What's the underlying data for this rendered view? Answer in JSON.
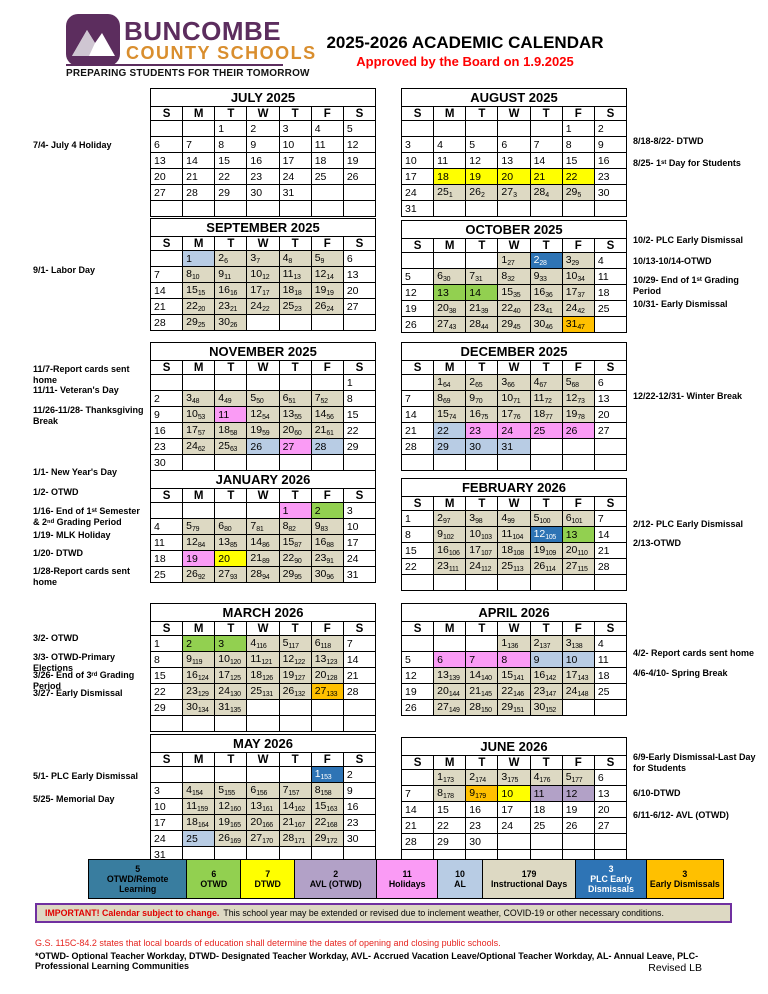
{
  "header": {
    "school_name_line1": "BUNCOMBE",
    "school_name_line2": "COUNTY SCHOOLS",
    "tagline": "PREPARING STUDENTS FOR THEIR TOMORROW",
    "title": "2025-2026 ACADEMIC CALENDAR",
    "approved": "Approved by the Board on 1.9.2025"
  },
  "colors": {
    "otwd_remote": "#397d9f",
    "otwd": "#92d050",
    "dtwd": "#ffff00",
    "avl": "#b2a1c7",
    "holiday": "#fa9bf5",
    "al": "#b8cce4",
    "instructional": "#ddd9c3",
    "plc": "#2e74b5",
    "early_dismissal": "#ffc000",
    "logo_purple": "#5c2d5e",
    "logo_orange": "#d98e2e",
    "approved_red": "#ff0000",
    "banner_border": "#7030a0"
  },
  "day_headers": [
    "S",
    "M",
    "T",
    "W",
    "T",
    "F",
    "S"
  ],
  "months": [
    {
      "name": "JULY 2025",
      "weeks": [
        [
          "",
          "",
          "1",
          "2",
          "3",
          "4",
          "5"
        ],
        [
          "6",
          "7",
          "8",
          "9",
          "10",
          "11",
          "12"
        ],
        [
          "13",
          "14",
          "15",
          "16",
          "17",
          "18",
          "19"
        ],
        [
          "20",
          "21",
          "22",
          "23",
          "24",
          "25",
          "26"
        ],
        [
          "27",
          "28",
          "29",
          "30",
          "31",
          "",
          ""
        ],
        [
          "",
          "",
          "",
          "",
          "",
          "",
          ""
        ]
      ]
    },
    {
      "name": "AUGUST 2025",
      "weeks": [
        [
          "",
          "",
          "",
          "",
          "",
          "1",
          "2"
        ],
        [
          "3",
          "4",
          "5",
          "6",
          "7",
          "8",
          "9"
        ],
        [
          "10",
          "11",
          "12",
          "13",
          "14",
          "15",
          "16"
        ],
        [
          "17",
          "18!dtwd",
          "19!dtwd",
          "20!dtwd",
          "21!dtwd",
          "22!dtwd",
          "23"
        ],
        [
          "24",
          "25.1",
          "26.2",
          "27.3",
          "28.4",
          "29.5",
          "30"
        ],
        [
          "31",
          "",
          "",
          "",
          "",
          "",
          ""
        ]
      ]
    },
    {
      "name": "SEPTEMBER 2025",
      "weeks": [
        [
          "",
          "1!al",
          "2.6",
          "3.7",
          "4.8",
          "5.9",
          "6"
        ],
        [
          "7",
          "8.10",
          "9.11",
          "10.12",
          "11.13",
          "12.14",
          "13"
        ],
        [
          "14",
          "15.15",
          "16.16",
          "17.17",
          "18.18",
          "19.19",
          "20"
        ],
        [
          "21",
          "22.20",
          "23.21",
          "24.22",
          "25.23",
          "26.24",
          "27"
        ],
        [
          "28",
          "29.25",
          "30.26",
          "",
          "",
          "",
          ""
        ]
      ]
    },
    {
      "name": "OCTOBER 2025",
      "weeks": [
        [
          "",
          "",
          "",
          "1.27",
          "2.28!plc",
          "3.29",
          "4"
        ],
        [
          "5",
          "6.30",
          "7.31",
          "8.32",
          "9.33",
          "10.34",
          "11"
        ],
        [
          "12",
          "13!otwd",
          "14!otwd",
          "15.35",
          "16.36",
          "17.37",
          "18"
        ],
        [
          "19",
          "20.38",
          "21.39",
          "22.40",
          "23.41",
          "24.42",
          "25"
        ],
        [
          "26",
          "27.43",
          "28.44",
          "29.45",
          "30.46",
          "31.47!ed",
          ""
        ]
      ]
    },
    {
      "name": "NOVEMBER 2025",
      "weeks": [
        [
          "",
          "",
          "",
          "",
          "",
          "",
          "1"
        ],
        [
          "2",
          "3.48",
          "4.49",
          "5.50",
          "6.51",
          "7.52",
          "8"
        ],
        [
          "9",
          "10.53",
          "11!hol",
          "12.54",
          "13.55",
          "14.56",
          "15"
        ],
        [
          "16",
          "17.57",
          "18.58",
          "19.59",
          "20.60",
          "21.61",
          "22"
        ],
        [
          "23",
          "24.62",
          "25.63",
          "26!al",
          "27!hol",
          "28!al",
          "29"
        ],
        [
          "30",
          "",
          "",
          "",
          "",
          "",
          ""
        ]
      ]
    },
    {
      "name": "DECEMBER 2025",
      "weeks": [
        [
          "",
          "1.64",
          "2.65",
          "3.66",
          "4.67",
          "5.68",
          "6"
        ],
        [
          "7",
          "8.69",
          "9.70",
          "10.71",
          "11.72",
          "12.73",
          "13"
        ],
        [
          "14",
          "15.74",
          "16.75",
          "17.76",
          "18.77",
          "19.78",
          "20"
        ],
        [
          "21",
          "22!al",
          "23!hol",
          "24!hol",
          "25!hol",
          "26!hol",
          "27"
        ],
        [
          "28",
          "29!al",
          "30!al",
          "31!al",
          "",
          "",
          ""
        ],
        [
          "",
          "",
          "",
          "",
          "",
          "",
          ""
        ]
      ]
    },
    {
      "name": "JANUARY 2026",
      "weeks": [
        [
          "",
          "",
          "",
          "",
          "1!hol",
          "2!otwd",
          "3"
        ],
        [
          "4",
          "5.79",
          "6.80",
          "7.81",
          "8.82",
          "9.83",
          "10"
        ],
        [
          "11",
          "12.84",
          "13.85",
          "14.86",
          "15.87",
          "16.88",
          "17"
        ],
        [
          "18",
          "19!hol",
          "20!dtwd",
          "21.89",
          "22.90",
          "23.91",
          "24"
        ],
        [
          "25",
          "26.92",
          "27.93",
          "28.94",
          "29.95",
          "30.96",
          "31"
        ]
      ]
    },
    {
      "name": "FEBRUARY 2026",
      "weeks": [
        [
          "1",
          "2.97",
          "3.98",
          "4.99",
          "5.100",
          "6.101",
          "7"
        ],
        [
          "8",
          "9.102",
          "10.103",
          "11.104",
          "12.105!plc",
          "13!otwd",
          "14"
        ],
        [
          "15",
          "16.106",
          "17.107",
          "18.108",
          "19.109",
          "20.110",
          "21"
        ],
        [
          "22",
          "23.111",
          "24.112",
          "25.113",
          "26.114",
          "27.115",
          "28"
        ],
        [
          "",
          "",
          "",
          "",
          "",
          "",
          ""
        ]
      ]
    },
    {
      "name": "MARCH 2026",
      "weeks": [
        [
          "1",
          "2!otwd",
          "3!otwd",
          "4.116",
          "5.117",
          "6.118",
          "7"
        ],
        [
          "8",
          "9.119",
          "10.120",
          "11.121",
          "12.122",
          "13.123",
          "14"
        ],
        [
          "15",
          "16.124",
          "17.125",
          "18.126",
          "19.127",
          "20.128",
          "21"
        ],
        [
          "22",
          "23.129",
          "24.130",
          "25.131",
          "26.132",
          "27.133!ed",
          "28"
        ],
        [
          "29",
          "30.134",
          "31.135",
          "",
          "",
          "",
          ""
        ],
        [
          "",
          "",
          "",
          "",
          "",
          "",
          ""
        ]
      ]
    },
    {
      "name": "APRIL 2026",
      "weeks": [
        [
          "",
          "",
          "",
          "1.136",
          "2.137",
          "3.138",
          "4"
        ],
        [
          "5",
          "6!hol",
          "7!hol",
          "8!hol",
          "9!al",
          "10!al",
          "11"
        ],
        [
          "12",
          "13.139",
          "14.140",
          "15.141",
          "16.142",
          "17.143",
          "18"
        ],
        [
          "19",
          "20.144",
          "21.145",
          "22.146",
          "23.147",
          "24.148",
          "25"
        ],
        [
          "26",
          "27.149",
          "28.150",
          "29.151",
          "30.152",
          "",
          ""
        ]
      ]
    },
    {
      "name": "MAY 2026",
      "weeks": [
        [
          "",
          "",
          "",
          "",
          "",
          "1.153!plc",
          "2"
        ],
        [
          "3",
          "4.154",
          "5.155",
          "6.156",
          "7.157",
          "8.158",
          "9"
        ],
        [
          "10",
          "11.159",
          "12.160",
          "13.161",
          "14.162",
          "15.163",
          "16"
        ],
        [
          "17",
          "18.164",
          "19.165",
          "20.166",
          "21.167",
          "22.168",
          "23"
        ],
        [
          "24",
          "25!al",
          "26.169",
          "27.170",
          "28.171",
          "29.172",
          "30"
        ],
        [
          "31",
          "",
          "",
          "",
          "",
          "",
          ""
        ]
      ]
    },
    {
      "name": "JUNE 2026",
      "weeks": [
        [
          "",
          "1.173",
          "2.174",
          "3.175",
          "4.176",
          "5.177",
          "6"
        ],
        [
          "7",
          "8.178",
          "9.179!ed",
          "10!dtwd",
          "11!avl",
          "12!avl",
          "13"
        ],
        [
          "14",
          "15",
          "16",
          "17",
          "18",
          "19",
          "20"
        ],
        [
          "21",
          "22",
          "23",
          "24",
          "25",
          "26",
          "27"
        ],
        [
          "28",
          "29",
          "30",
          "",
          "",
          "",
          ""
        ],
        [
          "",
          "",
          "",
          "",
          "",
          "",
          ""
        ]
      ]
    }
  ],
  "annotations_left": [
    "7/4- July 4 Holiday",
    "9/1- Labor Day",
    "11/7-Report cards sent home",
    "11/11- Veteran's Day",
    "11/26-11/28- Thanksgiving Break",
    "1/1- New Year's Day",
    "1/2- OTWD",
    "1/16- End of 1ˢᵗ Semester & 2ⁿᵈ Grading Period",
    "1/19- MLK Holiday",
    "1/20- DTWD",
    "1/28-Report cards sent home",
    "3/2- OTWD",
    "3/3- OTWD-Primary Elections",
    "3/26- End of 3ʳᵈ Grading Period",
    "3/27- Early Dismissal",
    "5/1- PLC Early Dismissal",
    "5/25- Memorial Day"
  ],
  "annotations_right": [
    "8/18-8/22- DTWD",
    "8/25- 1ˢᵗ Day for Students",
    "10/2- PLC Early Dismissal",
    "10/13-10/14-OTWD",
    "10/29- End of 1ˢᵗ Grading Period",
    "10/31- Early Dismissal",
    "12/22-12/31- Winter Break",
    "2/12- PLC Early Dismissal",
    "2/13-OTWD",
    "4/2- Report cards sent home",
    "4/6-4/10- Spring Break",
    "6/9-Early Dismissal-Last Day for Students",
    "6/10-DTWD",
    "6/11-6/12- AVL (OTWD)"
  ],
  "legend": [
    {
      "count": "5",
      "label": "OTWD/Remote Learning",
      "code": "otwd_remote"
    },
    {
      "count": "6",
      "label": "OTWD",
      "code": "otwd"
    },
    {
      "count": "7",
      "label": "DTWD",
      "code": "dtwd"
    },
    {
      "count": "2",
      "label": "AVL (OTWD)",
      "code": "avl"
    },
    {
      "count": "11",
      "label": "Holidays",
      "code": "hol"
    },
    {
      "count": "10",
      "label": "AL",
      "code": "al"
    },
    {
      "count": "179",
      "label": "Instructional Days",
      "code": "inst"
    },
    {
      "count": "3",
      "label": "PLC Early Dismissals",
      "code": "plc"
    },
    {
      "count": "3",
      "label": "Early Dismissals",
      "code": "ed"
    }
  ],
  "banner": {
    "important": "IMPORTANT! Calendar subject to change.",
    "rest": "This school year may be extended or revised due to inclement weather, COVID-19 or other necessary conditions."
  },
  "footer": {
    "gs_note": "G.S. 115C-84.2 states that local boards of education shall determine the dates of opening and closing public schools.",
    "abbreviations": "*OTWD- Optional Teacher Workday, DTWD- Designated Teacher Workday, AVL- Accrued Vacation Leave/Optional Teacher Workday, AL- Annual Leave, PLC- Professional Learning Communities",
    "revised": "Revised LB"
  }
}
